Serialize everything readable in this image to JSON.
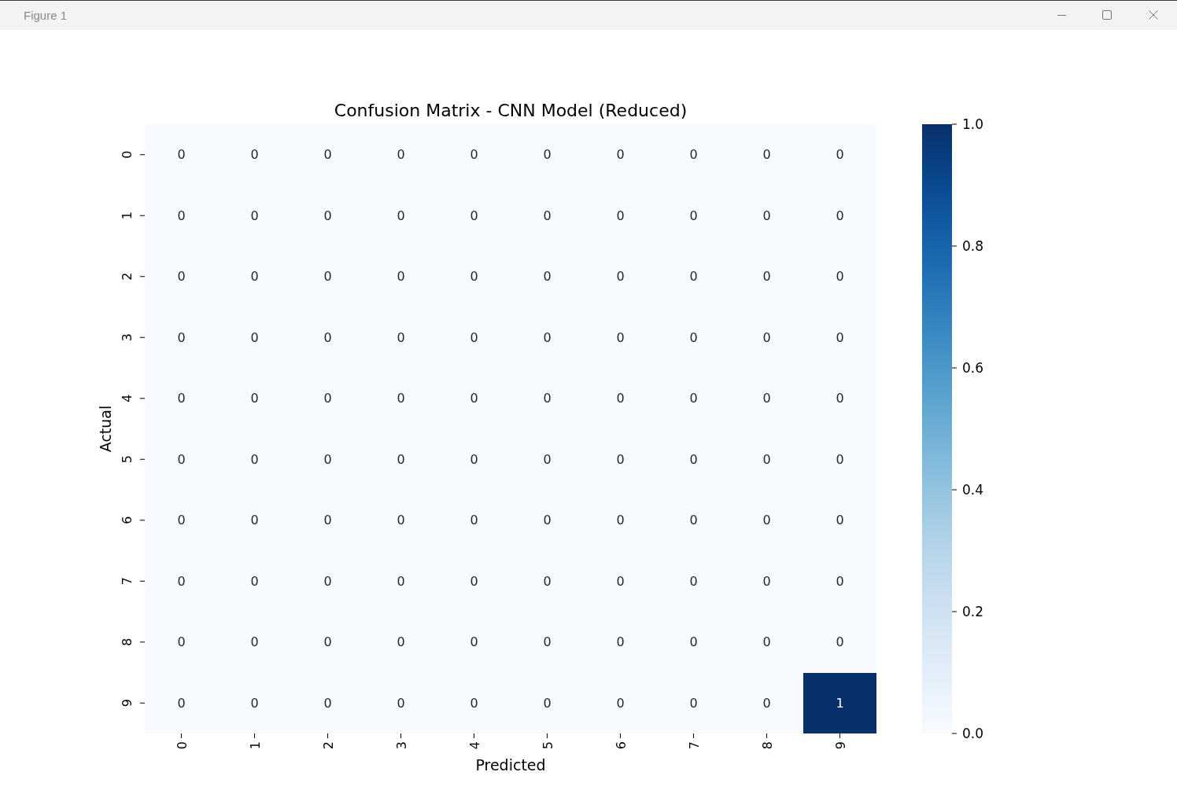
{
  "chart_data": {
    "type": "heatmap",
    "title": "Confusion Matrix - CNN Model (Reduced)",
    "xlabel": "Predicted",
    "ylabel": "Actual",
    "annotations": [
      "Figure 1"
    ],
    "categories": [
      "0",
      "1",
      "2",
      "3",
      "4",
      "5",
      "6",
      "7",
      "8",
      "9"
    ],
    "y_categories": [
      "0",
      "1",
      "2",
      "3",
      "4",
      "5",
      "6",
      "7",
      "8",
      "9"
    ],
    "cells": [
      [
        0,
        0,
        0,
        0,
        0,
        0,
        0,
        0,
        0,
        0
      ],
      [
        0,
        0,
        0,
        0,
        0,
        0,
        0,
        0,
        0,
        0
      ],
      [
        0,
        0,
        0,
        0,
        0,
        0,
        0,
        0,
        0,
        0
      ],
      [
        0,
        0,
        0,
        0,
        0,
        0,
        0,
        0,
        0,
        0
      ],
      [
        0,
        0,
        0,
        0,
        0,
        0,
        0,
        0,
        0,
        0
      ],
      [
        0,
        0,
        0,
        0,
        0,
        0,
        0,
        0,
        0,
        0
      ],
      [
        0,
        0,
        0,
        0,
        0,
        0,
        0,
        0,
        0,
        0
      ],
      [
        0,
        0,
        0,
        0,
        0,
        0,
        0,
        0,
        0,
        0
      ],
      [
        0,
        0,
        0,
        0,
        0,
        0,
        0,
        0,
        0,
        0
      ],
      [
        0,
        0,
        0,
        0,
        0,
        0,
        0,
        0,
        0,
        1
      ]
    ],
    "clim": [
      0,
      1
    ],
    "cticks": [
      {
        "value": 0,
        "label": "0.0"
      },
      {
        "value": 0.2,
        "label": "0.2"
      },
      {
        "value": 0.4,
        "label": "0.4"
      },
      {
        "value": 0.6,
        "label": "0.6"
      },
      {
        "value": 0.8,
        "label": "0.8"
      },
      {
        "value": 1,
        "label": "1.0"
      }
    ],
    "data_labels": true
  }
}
